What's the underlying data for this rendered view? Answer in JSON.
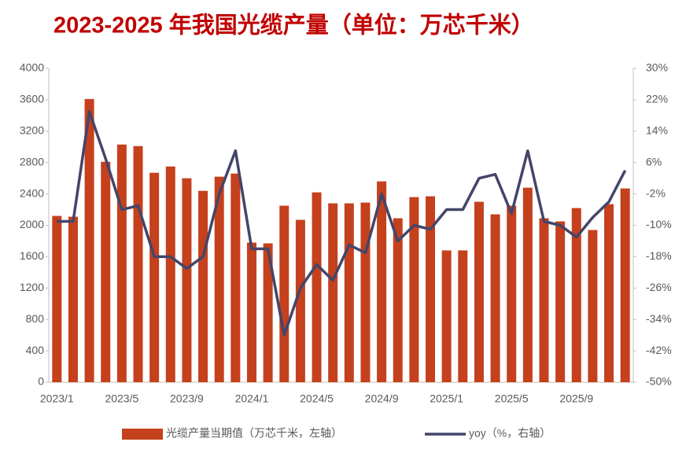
{
  "chart_data": {
    "type": "bar_line",
    "title": "2023-2025 年我国光缆产量（单位：万芯千米）",
    "categories": [
      "2023/1",
      null,
      null,
      null,
      "2023/5",
      null,
      null,
      null,
      "2023/9",
      null,
      null,
      null,
      "2024/1",
      null,
      null,
      null,
      "2024/5",
      null,
      null,
      null,
      "2024/9",
      null,
      null,
      null,
      "2025/1",
      null,
      null,
      null,
      "2025/5",
      null,
      null,
      null,
      "2025/9",
      null,
      null,
      null
    ],
    "series": [
      {
        "name": "光缆产量当期值（万芯千米，左轴）",
        "color": "#c5401c",
        "type": "bar",
        "values": [
          2120,
          2110,
          3610,
          2810,
          3030,
          3010,
          2670,
          2750,
          2600,
          2440,
          2620,
          2660,
          1780,
          1770,
          2250,
          2070,
          2420,
          2280,
          2280,
          2290,
          2560,
          2090,
          2360,
          2370,
          1680,
          1680,
          2300,
          2140,
          2250,
          2480,
          2090,
          2050,
          2220,
          1940,
          2270,
          2470
        ]
      },
      {
        "name": "yoy（%，右轴）",
        "color": "#44456a",
        "type": "line",
        "axis": "y2",
        "values": [
          -9,
          -9,
          19,
          7,
          -6,
          -5,
          -18,
          -18,
          -21,
          -18,
          -2,
          9,
          -16,
          -16,
          -38,
          -26,
          -20,
          -24,
          -15,
          -17,
          -2,
          -14,
          -10,
          -11,
          -6,
          -6,
          2,
          3,
          -7,
          9,
          -9,
          -10,
          -13,
          -8,
          -4,
          4
        ]
      }
    ],
    "ylim": [
      0,
      4000
    ],
    "yticks": [
      0,
      400,
      800,
      1200,
      1600,
      2000,
      2400,
      2800,
      3200,
      3600,
      4000
    ],
    "y2lim": [
      -50,
      30
    ],
    "y2ticks": [
      {
        "value": -50,
        "label": "-50%"
      },
      {
        "value": -42,
        "label": "-42%"
      },
      {
        "value": -34,
        "label": "-34%"
      },
      {
        "value": -26,
        "label": "-26%"
      },
      {
        "value": -18,
        "label": "-18%"
      },
      {
        "value": -10,
        "label": "-10%"
      },
      {
        "value": -2,
        "label": "-2%"
      },
      {
        "value": 6,
        "label": "6%"
      },
      {
        "value": 14,
        "label": "14%"
      },
      {
        "value": 22,
        "label": "22%"
      },
      {
        "value": 30,
        "label": "30%"
      }
    ],
    "legend": "bottom"
  }
}
